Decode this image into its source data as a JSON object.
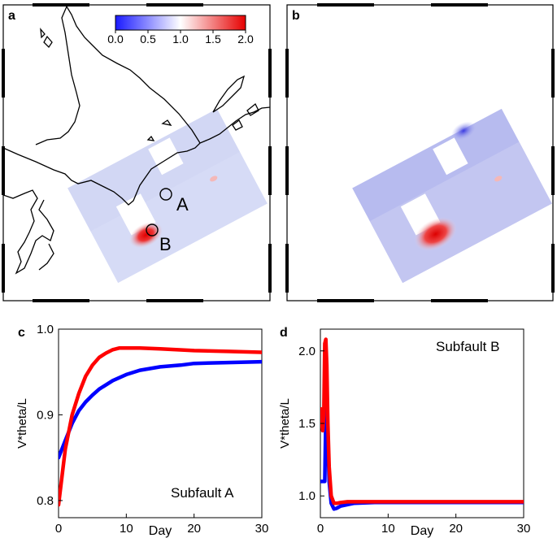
{
  "panels": {
    "a": "a",
    "b": "b",
    "c": "c",
    "d": "d"
  },
  "colorbar": {
    "ticks": [
      "0.0",
      "0.5",
      "1.0",
      "1.5",
      "2.0"
    ],
    "colors": [
      "#1a1aff",
      "#ffffff",
      "#e60000"
    ]
  },
  "map_markers": {
    "A": "A",
    "B": "B"
  },
  "chart_data": [
    {
      "type": "line",
      "panel": "c",
      "annotation": "Subfault A",
      "xlabel": "Day",
      "ylabel": "V*theta/L",
      "xlim": [
        0,
        30
      ],
      "ylim": [
        0.78,
        1.0
      ],
      "xticks": [
        0,
        10,
        20,
        30
      ],
      "yticks": [
        0.8,
        0.9,
        1.0
      ],
      "ytick_labels": [
        "0.8",
        "0.9",
        "1.0"
      ],
      "series": [
        {
          "color": "#0000ff",
          "x": [
            0,
            1,
            2,
            3,
            4,
            5,
            6,
            8,
            10,
            12,
            15,
            18,
            20,
            25,
            30
          ],
          "y": [
            0.85,
            0.87,
            0.89,
            0.905,
            0.915,
            0.923,
            0.93,
            0.94,
            0.947,
            0.952,
            0.956,
            0.958,
            0.96,
            0.961,
            0.962
          ]
        },
        {
          "color": "#ff0000",
          "x": [
            0,
            1,
            2,
            3,
            4,
            5,
            6,
            7,
            8,
            9,
            10,
            12,
            15,
            20,
            25,
            30
          ],
          "y": [
            0.795,
            0.86,
            0.9,
            0.925,
            0.945,
            0.958,
            0.967,
            0.972,
            0.976,
            0.978,
            0.978,
            0.978,
            0.977,
            0.975,
            0.974,
            0.973
          ]
        }
      ]
    },
    {
      "type": "line",
      "panel": "d",
      "annotation": "Subfault B",
      "xlabel": "Day",
      "ylabel": "V*theta/L",
      "xlim": [
        0,
        30
      ],
      "ylim": [
        0.85,
        2.15
      ],
      "xticks": [
        0,
        10,
        20,
        30
      ],
      "yticks": [
        1.0,
        1.5,
        2.0
      ],
      "ytick_labels": [
        "1.0",
        "1.5",
        "2.0"
      ],
      "series": [
        {
          "color": "#0000ff",
          "x": [
            0,
            0.15,
            0.3,
            0.5,
            0.65,
            0.8,
            0.9,
            1.0,
            1.1,
            1.3,
            1.6,
            2.0,
            2.4,
            3.0,
            4.0,
            5.0,
            8.0,
            15,
            20,
            30
          ],
          "y": [
            1.1,
            1.1,
            1.1,
            1.1,
            1.1,
            1.55,
            1.6,
            1.5,
            1.4,
            1.1,
            0.95,
            0.91,
            0.915,
            0.93,
            0.94,
            0.95,
            0.955,
            0.955,
            0.955,
            0.955
          ]
        },
        {
          "color": "#ff0000",
          "x": [
            0,
            0.1,
            0.2,
            0.35,
            0.5,
            0.65,
            0.8,
            0.95,
            1.1,
            1.3,
            1.6,
            2.0,
            2.5,
            3.0,
            4.0,
            5.0,
            8.0,
            15,
            20,
            30
          ],
          "y": [
            1.5,
            1.6,
            1.5,
            1.45,
            1.55,
            2.05,
            2.08,
            1.9,
            1.5,
            1.2,
            1.0,
            0.95,
            0.95,
            0.955,
            0.96,
            0.96,
            0.96,
            0.96,
            0.96,
            0.96
          ]
        }
      ]
    }
  ]
}
